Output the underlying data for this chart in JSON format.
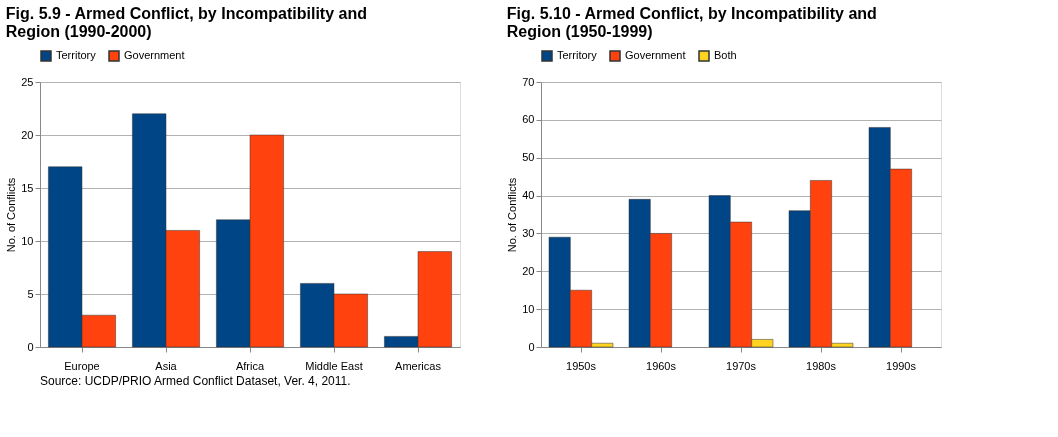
{
  "chart_data": [
    {
      "type": "bar",
      "title": "Fig. 5.9 - Armed Conflict, by Incompatibility and Region (1990-2000)",
      "ylabel": "No. of Conflicts",
      "categories": [
        "Europe",
        "Asia",
        "Africa",
        "Middle East",
        "Americas"
      ],
      "series": [
        {
          "name": "Territory",
          "color": "#004586",
          "values": [
            17,
            22,
            12,
            6,
            1
          ]
        },
        {
          "name": "Government",
          "color": "#ff420e",
          "values": [
            3,
            11,
            20,
            5,
            9
          ]
        }
      ],
      "ylim": [
        0,
        25
      ],
      "yticks": [
        0,
        5,
        10,
        15,
        20,
        25
      ],
      "grid": "y",
      "legend": "top",
      "annotations": [
        "Source: UCDP/PRIO Armed Conflict Dataset, Ver. 4, 2011."
      ]
    },
    {
      "type": "bar",
      "title": "Fig. 5.10 - Armed Conflict, by Incompatibility and Region (1950-1999)",
      "ylabel": "No. of Conflicts",
      "categories": [
        "1950s",
        "1960s",
        "1970s",
        "1980s",
        "1990s"
      ],
      "series": [
        {
          "name": "Territory",
          "color": "#004586",
          "values": [
            29,
            39,
            40,
            36,
            58
          ]
        },
        {
          "name": "Government",
          "color": "#ff420e",
          "values": [
            15,
            30,
            33,
            44,
            47
          ]
        },
        {
          "name": "Both",
          "color": "#ffd320",
          "values": [
            1,
            null,
            2,
            1,
            null
          ]
        }
      ],
      "ylim": [
        0,
        70
      ],
      "yticks": [
        0,
        10,
        20,
        30,
        40,
        50,
        60,
        70
      ],
      "grid": "y",
      "legend": "top"
    }
  ]
}
